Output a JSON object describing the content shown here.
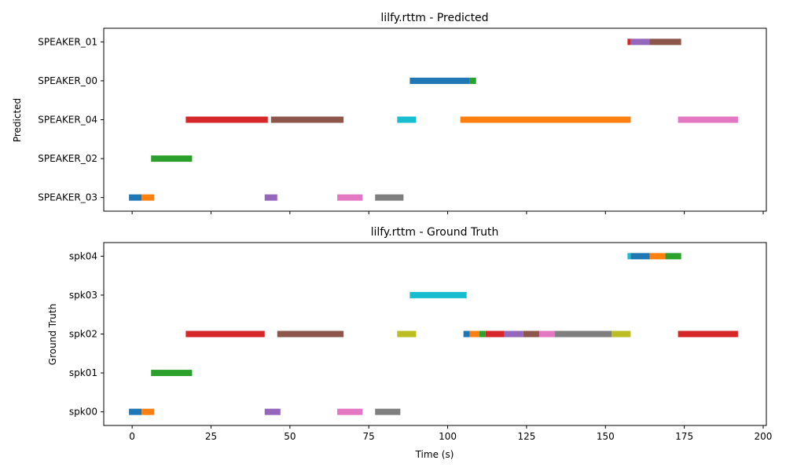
{
  "chart_data": [
    {
      "type": "gantt",
      "title": "lilfy.rttm - Predicted",
      "ylabel": "Predicted",
      "xlabel": "",
      "xlim": [
        -9,
        201
      ],
      "xticks": [
        0,
        25,
        50,
        75,
        100,
        125,
        150,
        175,
        200
      ],
      "categories": [
        "SPEAKER_03",
        "SPEAKER_02",
        "SPEAKER_04",
        "SPEAKER_00",
        "SPEAKER_01"
      ],
      "segments": [
        {
          "row": "SPEAKER_03",
          "start": -1,
          "end": 3,
          "color": "#1f77b4"
        },
        {
          "row": "SPEAKER_03",
          "start": 3,
          "end": 7,
          "color": "#ff7f0e"
        },
        {
          "row": "SPEAKER_02",
          "start": 6,
          "end": 19,
          "color": "#2ca02c"
        },
        {
          "row": "SPEAKER_04",
          "start": 17,
          "end": 43,
          "color": "#d62728"
        },
        {
          "row": "SPEAKER_03",
          "start": 42,
          "end": 46,
          "color": "#9467bd"
        },
        {
          "row": "SPEAKER_04",
          "start": 44,
          "end": 67,
          "color": "#8c564b"
        },
        {
          "row": "SPEAKER_03",
          "start": 65,
          "end": 73,
          "color": "#e377c2"
        },
        {
          "row": "SPEAKER_03",
          "start": 77,
          "end": 86,
          "color": "#7f7f7f"
        },
        {
          "row": "SPEAKER_04",
          "start": 84,
          "end": 90,
          "color": "#17becf"
        },
        {
          "row": "SPEAKER_00",
          "start": 88,
          "end": 107,
          "color": "#1f77b4"
        },
        {
          "row": "SPEAKER_00",
          "start": 107,
          "end": 109,
          "color": "#2ca02c"
        },
        {
          "row": "SPEAKER_04",
          "start": 104,
          "end": 158,
          "color": "#ff7f0e"
        },
        {
          "row": "SPEAKER_01",
          "start": 157,
          "end": 158,
          "color": "#d62728"
        },
        {
          "row": "SPEAKER_01",
          "start": 158,
          "end": 164,
          "color": "#9467bd"
        },
        {
          "row": "SPEAKER_01",
          "start": 164,
          "end": 174,
          "color": "#8c564b"
        },
        {
          "row": "SPEAKER_04",
          "start": 173,
          "end": 192,
          "color": "#e377c2"
        }
      ]
    },
    {
      "type": "gantt",
      "title": "lilfy.rttm - Ground Truth",
      "ylabel": "Ground Truth",
      "xlabel": "Time (s)",
      "xlim": [
        -9,
        201
      ],
      "xticks": [
        0,
        25,
        50,
        75,
        100,
        125,
        150,
        175,
        200
      ],
      "categories": [
        "spk00",
        "spk01",
        "spk02",
        "spk03",
        "spk04"
      ],
      "segments": [
        {
          "row": "spk00",
          "start": -1,
          "end": 3,
          "color": "#1f77b4"
        },
        {
          "row": "spk00",
          "start": 3,
          "end": 7,
          "color": "#ff7f0e"
        },
        {
          "row": "spk01",
          "start": 6,
          "end": 19,
          "color": "#2ca02c"
        },
        {
          "row": "spk02",
          "start": 17,
          "end": 42,
          "color": "#d62728"
        },
        {
          "row": "spk00",
          "start": 42,
          "end": 47,
          "color": "#9467bd"
        },
        {
          "row": "spk02",
          "start": 46,
          "end": 67,
          "color": "#8c564b"
        },
        {
          "row": "spk00",
          "start": 65,
          "end": 73,
          "color": "#e377c2"
        },
        {
          "row": "spk00",
          "start": 77,
          "end": 85,
          "color": "#7f7f7f"
        },
        {
          "row": "spk02",
          "start": 84,
          "end": 90,
          "color": "#bcbd22"
        },
        {
          "row": "spk03",
          "start": 88,
          "end": 106,
          "color": "#17becf"
        },
        {
          "row": "spk02",
          "start": 105,
          "end": 107,
          "color": "#1f77b4"
        },
        {
          "row": "spk02",
          "start": 107,
          "end": 110,
          "color": "#ff7f0e"
        },
        {
          "row": "spk02",
          "start": 110,
          "end": 112,
          "color": "#2ca02c"
        },
        {
          "row": "spk02",
          "start": 112,
          "end": 118,
          "color": "#d62728"
        },
        {
          "row": "spk02",
          "start": 118,
          "end": 124,
          "color": "#9467bd"
        },
        {
          "row": "spk02",
          "start": 124,
          "end": 129,
          "color": "#8c564b"
        },
        {
          "row": "spk02",
          "start": 129,
          "end": 134,
          "color": "#e377c2"
        },
        {
          "row": "spk02",
          "start": 134,
          "end": 152,
          "color": "#7f7f7f"
        },
        {
          "row": "spk02",
          "start": 152,
          "end": 158,
          "color": "#bcbd22"
        },
        {
          "row": "spk04",
          "start": 157,
          "end": 158,
          "color": "#17becf"
        },
        {
          "row": "spk04",
          "start": 158,
          "end": 164,
          "color": "#1f77b4"
        },
        {
          "row": "spk04",
          "start": 164,
          "end": 169,
          "color": "#ff7f0e"
        },
        {
          "row": "spk04",
          "start": 169,
          "end": 174,
          "color": "#2ca02c"
        },
        {
          "row": "spk02",
          "start": 173,
          "end": 192,
          "color": "#d62728"
        }
      ]
    }
  ]
}
